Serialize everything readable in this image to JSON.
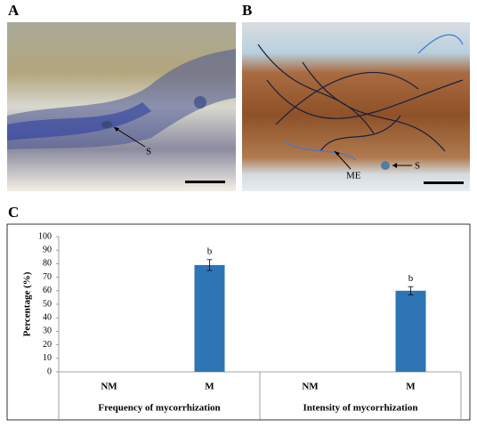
{
  "panels": {
    "a": {
      "label": "A",
      "annotations": [
        "S"
      ]
    },
    "b": {
      "label": "B",
      "annotations": [
        "ME",
        "S"
      ]
    },
    "c": {
      "label": "C"
    }
  },
  "chart_data": {
    "type": "bar",
    "categories": [
      "NM",
      "M",
      "NM",
      "M"
    ],
    "groups": [
      "Frequency of mycorrhization",
      "Intensity of mycorrhization"
    ],
    "values": [
      0,
      79,
      0,
      60
    ],
    "errors": [
      null,
      4,
      null,
      3
    ],
    "significance_letters": [
      null,
      "b",
      null,
      "b"
    ],
    "ylabel": "Percentage (%)",
    "color": "#2e75b6",
    "ylim": [
      0,
      100
    ],
    "yticks": [
      0,
      10,
      20,
      30,
      40,
      50,
      60,
      70,
      80,
      90,
      100
    ]
  }
}
